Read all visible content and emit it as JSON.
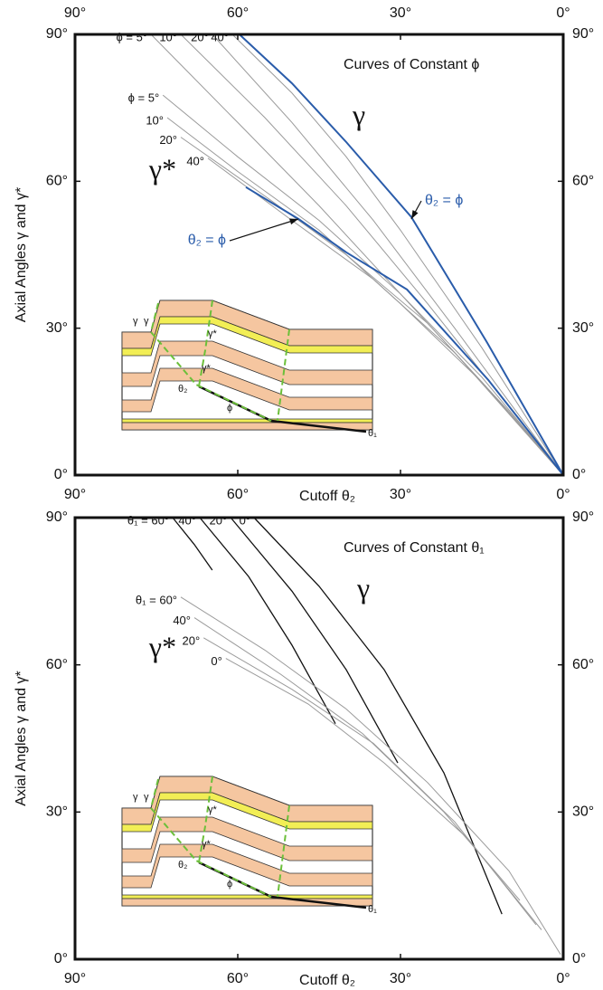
{
  "chart_data": [
    {
      "type": "line",
      "title": "Curves of Constant ϕ",
      "xlabel": "Cutoff θ₂",
      "ylabel": "Axial Angles γ and γ*",
      "gamma_label": "γ",
      "gamma_star_label": "γ*",
      "arrow_labels": [
        "θ₂ = ϕ",
        "θ₂ = ϕ"
      ],
      "inset_labels": {
        "gamma": "γ",
        "gamma_star": "γ*",
        "theta2": "θ₂",
        "phi": "ϕ",
        "theta1": "θ₁"
      },
      "xlim": [
        90,
        0
      ],
      "ylim": [
        0,
        90
      ],
      "x_tick_labels_top": true,
      "xticks": [
        {
          "value": 90,
          "label": "90°"
        },
        {
          "value": 60,
          "label": "60°"
        },
        {
          "value": 30,
          "label": "30°"
        },
        {
          "value": 0,
          "label": "0°"
        }
      ],
      "yticks": [
        {
          "value": 0,
          "label": "0°"
        },
        {
          "value": 30,
          "label": "30°"
        },
        {
          "value": 60,
          "label": "60°"
        },
        {
          "value": 90,
          "label": "90°"
        }
      ],
      "series": [
        {
          "name": "ϕ = 5°",
          "color": "#9a9a9a",
          "x": [
            76,
            60,
            45,
            30,
            15,
            0
          ],
          "values": [
            90,
            72,
            55,
            37,
            19,
            0
          ]
        },
        {
          "name": "10°",
          "color": "#9a9a9a",
          "x": [
            70.5,
            55,
            40,
            25,
            10,
            0
          ],
          "values": [
            90,
            73,
            55,
            35,
            14,
            0
          ]
        },
        {
          "name": "20°",
          "color": "#9a9a9a",
          "x": [
            64.7,
            50,
            35,
            20,
            0
          ],
          "values": [
            90,
            72,
            52,
            30,
            0
          ]
        },
        {
          "name": "40°",
          "color": "#9a9a9a",
          "x": [
            61,
            50,
            40,
            30,
            15,
            0
          ],
          "values": [
            90,
            78,
            65,
            50,
            26,
            0
          ]
        },
        {
          "name": "ϕ = 5°",
          "color": "#9a9a9a",
          "x": [
            73.8,
            60,
            45,
            30,
            15,
            0
          ],
          "values": [
            77.6,
            65,
            52,
            37,
            20,
            0
          ]
        },
        {
          "name": "10°",
          "color": "#9a9a9a",
          "x": [
            73,
            60,
            45,
            30,
            15,
            0
          ],
          "values": [
            73,
            62,
            50,
            35,
            19,
            0
          ]
        },
        {
          "name": "20°",
          "color": "#9a9a9a",
          "x": [
            70.5,
            55,
            40,
            25,
            10,
            0
          ],
          "values": [
            69,
            57,
            45,
            31,
            13,
            0
          ]
        },
        {
          "name": "40°",
          "color": "#9a9a9a",
          "x": [
            65.5,
            50,
            35,
            20,
            0
          ],
          "values": [
            64.7,
            52,
            40,
            25,
            0
          ]
        },
        {
          "color": "#2a5caa",
          "x": [
            59.7,
            50,
            40,
            28,
            14,
            0
          ],
          "values": [
            90,
            80,
            68,
            52.7,
            27,
            0
          ]
        },
        {
          "color": "#2a5caa",
          "x": [
            58.5,
            48.8,
            40,
            28.8,
            13.8,
            0
          ],
          "values": [
            58.8,
            52.3,
            45.5,
            37.9,
            19.4,
            0
          ]
        }
      ]
    },
    {
      "type": "line",
      "title": "Curves of Constant θ₁",
      "xlabel": "Cutoff θ₂",
      "ylabel": "Axial Angles γ and γ*",
      "gamma_label": "γ",
      "gamma_star_label": "γ*",
      "inset_labels": {
        "gamma": "γ",
        "gamma_star": "γ*",
        "theta2": "θ₂",
        "phi": "ϕ",
        "theta1": "θ₁"
      },
      "xlim": [
        90,
        0
      ],
      "ylim": [
        0,
        90
      ],
      "x_tick_labels_top": false,
      "xticks": [
        {
          "value": 90,
          "label": "90°"
        },
        {
          "value": 60,
          "label": "60°"
        },
        {
          "value": 30,
          "label": "30°"
        },
        {
          "value": 0,
          "label": "0°"
        }
      ],
      "yticks": [
        {
          "value": 0,
          "label": "0°"
        },
        {
          "value": 30,
          "label": "30°"
        },
        {
          "value": 60,
          "label": "60°"
        },
        {
          "value": 90,
          "label": "90°"
        }
      ],
      "series": [
        {
          "name": "θ₁ = 60°",
          "color": "#111111",
          "x": [
            72,
            68,
            64.7
          ],
          "values": [
            90,
            84.5,
            79.3
          ]
        },
        {
          "name": "40°",
          "color": "#111111",
          "x": [
            67,
            58,
            50,
            42
          ],
          "values": [
            90,
            78,
            64,
            48
          ]
        },
        {
          "name": "20°",
          "color": "#111111",
          "x": [
            61.3,
            50,
            40,
            30.5
          ],
          "values": [
            90,
            75,
            59,
            40
          ]
        },
        {
          "name": "0°",
          "color": "#111111",
          "x": [
            57,
            45,
            33,
            22,
            11.3
          ],
          "values": [
            90,
            76,
            59,
            38,
            9.2
          ]
        },
        {
          "name": "θ₁ = 60°",
          "color": "#9a9a9a",
          "x": [
            70.5,
            55,
            40,
            25,
            10,
            0.5
          ],
          "values": [
            73.8,
            63,
            51,
            36,
            18,
            1
          ]
        },
        {
          "name": "40°",
          "color": "#9a9a9a",
          "x": [
            68,
            52,
            37,
            22,
            8
          ],
          "values": [
            69.6,
            58,
            46,
            30,
            12
          ]
        },
        {
          "name": "20°",
          "color": "#9a9a9a",
          "x": [
            66.3,
            50,
            35,
            20,
            5
          ],
          "values": [
            65.5,
            55,
            44,
            28,
            7
          ]
        },
        {
          "name": "0°",
          "color": "#9a9a9a",
          "x": [
            62.2,
            47,
            33,
            18,
            4
          ],
          "values": [
            61.3,
            52,
            40,
            25,
            6
          ]
        }
      ]
    }
  ]
}
